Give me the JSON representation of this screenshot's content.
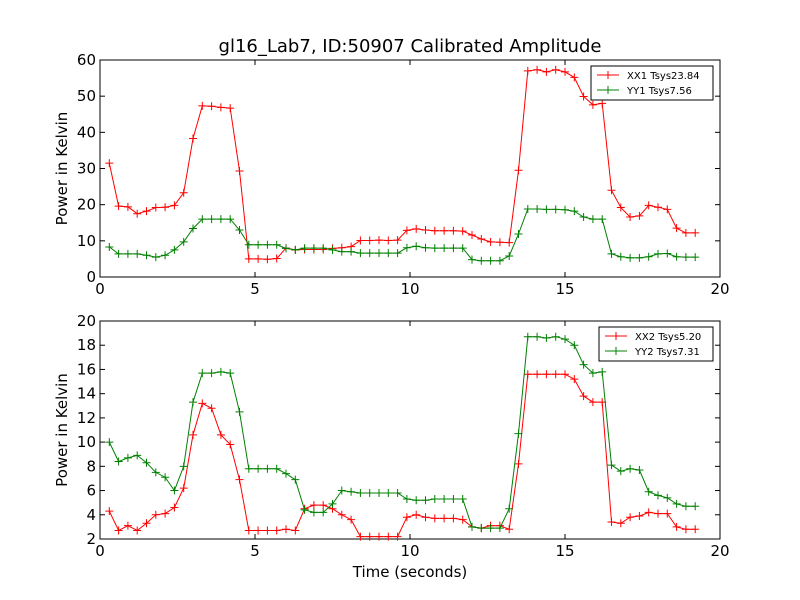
{
  "figure": {
    "title": "gl16_Lab7, ID:50907 Calibrated Amplitude",
    "xlabel": "Time (seconds)"
  },
  "chart_data": [
    {
      "type": "line",
      "title": "gl16_Lab7, ID:50907 Calibrated Amplitude",
      "xlabel": "",
      "ylabel": "Power in Kelvin",
      "xlim": [
        0,
        20
      ],
      "ylim": [
        0,
        60
      ],
      "xticks": [
        0,
        5,
        10,
        15,
        20
      ],
      "yticks": [
        0,
        10,
        20,
        30,
        40,
        50,
        60
      ],
      "legend_position": "top-right",
      "grid": false,
      "x": [
        0.3,
        0.6,
        0.9,
        1.2,
        1.5,
        1.8,
        2.1,
        2.4,
        2.7,
        3.0,
        3.3,
        3.6,
        3.9,
        4.2,
        4.5,
        4.8,
        5.1,
        5.4,
        5.7,
        6.0,
        6.3,
        6.6,
        6.9,
        7.2,
        7.5,
        7.8,
        8.1,
        8.4,
        8.7,
        9.0,
        9.3,
        9.6,
        9.9,
        10.2,
        10.5,
        10.8,
        11.1,
        11.4,
        11.7,
        12.0,
        12.3,
        12.6,
        12.9,
        13.2,
        13.5,
        13.8,
        14.1,
        14.4,
        14.7,
        15.0,
        15.3,
        15.6,
        15.9,
        16.2,
        16.5,
        16.8,
        17.1,
        17.4,
        17.7,
        18.0,
        18.3,
        18.6,
        18.9,
        19.2
      ],
      "series": [
        {
          "name": "XX1 Tsys23.84",
          "color": "#ff0000",
          "values": [
            31.5,
            19.6,
            19.4,
            17.5,
            18.2,
            19.2,
            19.3,
            19.8,
            23.3,
            38.3,
            47.3,
            47.2,
            46.9,
            46.7,
            29.3,
            5.0,
            5.0,
            4.9,
            5.1,
            8.0,
            7.5,
            7.6,
            7.6,
            7.6,
            7.9,
            8.1,
            8.4,
            10.1,
            10.1,
            10.2,
            10.1,
            10.2,
            12.9,
            13.3,
            13.0,
            12.8,
            12.8,
            12.8,
            12.7,
            11.6,
            10.5,
            9.7,
            9.6,
            9.5,
            29.5,
            57.0,
            57.3,
            56.7,
            57.3,
            56.7,
            55.2,
            49.9,
            47.6,
            48.0,
            24.0,
            19.2,
            16.6,
            16.9,
            19.8,
            19.3,
            18.7,
            13.5,
            12.2,
            12.2
          ]
        },
        {
          "name": "YY1 Tsys7.56",
          "color": "#008000",
          "values": [
            8.3,
            6.4,
            6.4,
            6.4,
            6.0,
            5.5,
            6.0,
            7.5,
            9.7,
            13.4,
            16.0,
            16.0,
            16.0,
            16.0,
            13.0,
            8.9,
            8.9,
            8.9,
            8.9,
            7.9,
            7.5,
            8.0,
            8.0,
            8.0,
            7.5,
            7.0,
            7.0,
            6.6,
            6.6,
            6.6,
            6.6,
            6.6,
            8.1,
            8.5,
            8.1,
            8.0,
            8.0,
            8.0,
            8.0,
            4.8,
            4.5,
            4.5,
            4.5,
            5.8,
            11.9,
            18.8,
            18.8,
            18.7,
            18.7,
            18.6,
            18.2,
            16.6,
            16.0,
            16.0,
            6.4,
            5.6,
            5.3,
            5.3,
            5.6,
            6.4,
            6.5,
            5.6,
            5.5,
            5.5
          ]
        }
      ]
    },
    {
      "type": "line",
      "title": "",
      "xlabel": "Time (seconds)",
      "ylabel": "Power in Kelvin",
      "xlim": [
        0,
        20
      ],
      "ylim": [
        2,
        20
      ],
      "xticks": [
        0,
        5,
        10,
        15,
        20
      ],
      "yticks": [
        2,
        4,
        6,
        8,
        10,
        12,
        14,
        16,
        18,
        20
      ],
      "legend_position": "top-right",
      "grid": false,
      "x": [
        0.3,
        0.6,
        0.9,
        1.2,
        1.5,
        1.8,
        2.1,
        2.4,
        2.7,
        3.0,
        3.3,
        3.6,
        3.9,
        4.2,
        4.5,
        4.8,
        5.1,
        5.4,
        5.7,
        6.0,
        6.3,
        6.6,
        6.9,
        7.2,
        7.5,
        7.8,
        8.1,
        8.4,
        8.7,
        9.0,
        9.3,
        9.6,
        9.9,
        10.2,
        10.5,
        10.8,
        11.1,
        11.4,
        11.7,
        12.0,
        12.3,
        12.6,
        12.9,
        13.2,
        13.5,
        13.8,
        14.1,
        14.4,
        14.7,
        15.0,
        15.3,
        15.6,
        15.9,
        16.2,
        16.5,
        16.8,
        17.1,
        17.4,
        17.7,
        18.0,
        18.3,
        18.6,
        18.9,
        19.2
      ],
      "series": [
        {
          "name": "XX2 Tsys5.20",
          "color": "#ff0000",
          "values": [
            4.3,
            2.7,
            3.1,
            2.7,
            3.3,
            4.0,
            4.1,
            4.6,
            6.2,
            10.6,
            13.2,
            12.8,
            10.6,
            9.8,
            6.9,
            2.7,
            2.7,
            2.7,
            2.7,
            2.8,
            2.7,
            4.5,
            4.8,
            4.8,
            4.5,
            4.0,
            3.6,
            2.2,
            2.2,
            2.2,
            2.2,
            2.2,
            3.8,
            4.0,
            3.8,
            3.7,
            3.7,
            3.7,
            3.6,
            3.0,
            2.9,
            3.1,
            3.1,
            2.8,
            8.2,
            15.6,
            15.6,
            15.6,
            15.6,
            15.6,
            15.2,
            13.8,
            13.3,
            13.3,
            3.4,
            3.3,
            3.8,
            3.9,
            4.2,
            4.1,
            4.1,
            3.0,
            2.8,
            2.8
          ]
        },
        {
          "name": "YY2 Tsys7.31",
          "color": "#008000",
          "values": [
            10.0,
            8.4,
            8.7,
            8.9,
            8.3,
            7.5,
            7.1,
            6.0,
            8.0,
            13.3,
            15.7,
            15.7,
            15.8,
            15.7,
            12.5,
            7.8,
            7.8,
            7.8,
            7.8,
            7.4,
            6.9,
            4.4,
            4.2,
            4.2,
            4.9,
            6.0,
            5.9,
            5.8,
            5.8,
            5.8,
            5.8,
            5.8,
            5.3,
            5.2,
            5.2,
            5.3,
            5.3,
            5.3,
            5.3,
            3.0,
            2.9,
            2.9,
            2.9,
            4.5,
            10.7,
            18.7,
            18.7,
            18.6,
            18.7,
            18.5,
            18.0,
            16.4,
            15.7,
            15.8,
            8.1,
            7.6,
            7.8,
            7.7,
            5.9,
            5.6,
            5.4,
            4.9,
            4.7,
            4.7
          ]
        }
      ]
    }
  ]
}
